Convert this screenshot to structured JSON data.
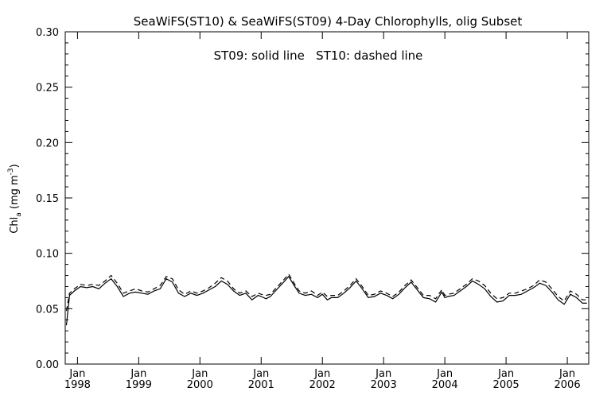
{
  "chart_data": {
    "type": "line",
    "title": "SeaWiFS(ST10) & SeaWiFS(ST09) 4-Day Chlorophylls, olig Subset",
    "legend_text": "ST09: solid line   ST10: dashed line",
    "ylabel": "Chl_a (mg m^-3)",
    "ylabel_parts": {
      "main": "Chl",
      "sub": "a",
      "unit_open": " (mg m",
      "sup": "-3",
      "unit_close": ")"
    },
    "xlabel": "",
    "ylim": [
      0.0,
      0.3
    ],
    "xlim": [
      1997.8,
      2006.35
    ],
    "yticks": [
      0.0,
      0.05,
      0.1,
      0.15,
      0.2,
      0.25,
      0.3
    ],
    "ytick_labels": [
      "0.00",
      "0.05",
      "0.10",
      "0.15",
      "0.20",
      "0.25",
      "0.30"
    ],
    "xticks": [
      {
        "x": 1998,
        "month": "Jan",
        "year": "1998"
      },
      {
        "x": 1999,
        "month": "Jan",
        "year": "1999"
      },
      {
        "x": 2000,
        "month": "Jan",
        "year": "2000"
      },
      {
        "x": 2001,
        "month": "Jan",
        "year": "2001"
      },
      {
        "x": 2002,
        "month": "Jan",
        "year": "2002"
      },
      {
        "x": 2003,
        "month": "Jan",
        "year": "2003"
      },
      {
        "x": 2004,
        "month": "Jan",
        "year": "2004"
      },
      {
        "x": 2005,
        "month": "Jan",
        "year": "2005"
      },
      {
        "x": 2006,
        "month": "Jan",
        "year": "2006"
      }
    ],
    "grid": false,
    "series": [
      {
        "name": "ST09",
        "style": "solid",
        "color": "#000000",
        "x": [
          1997.82,
          1997.87,
          1997.95,
          1998.05,
          1998.15,
          1998.25,
          1998.35,
          1998.45,
          1998.55,
          1998.65,
          1998.75,
          1998.85,
          1998.95,
          1999.05,
          1999.15,
          1999.25,
          1999.35,
          1999.45,
          1999.55,
          1999.65,
          1999.75,
          1999.85,
          1999.95,
          2000.05,
          2000.15,
          2000.25,
          2000.35,
          2000.45,
          2000.55,
          2000.65,
          2000.75,
          2000.85,
          2000.95,
          2001.0,
          2001.08,
          2001.15,
          2001.25,
          2001.35,
          2001.45,
          2001.55,
          2001.62,
          2001.72,
          2001.82,
          2001.92,
          2002.0,
          2002.08,
          2002.15,
          2002.25,
          2002.35,
          2002.45,
          2002.55,
          2002.65,
          2002.75,
          2002.85,
          2002.95,
          2003.05,
          2003.15,
          2003.25,
          2003.35,
          2003.45,
          2003.55,
          2003.65,
          2003.75,
          2003.85,
          2003.95,
          2004.0,
          2004.05,
          2004.15,
          2004.25,
          2004.35,
          2004.45,
          2004.55,
          2004.65,
          2004.75,
          2004.85,
          2004.95,
          2005.05,
          2005.15,
          2005.25,
          2005.35,
          2005.45,
          2005.55,
          2005.65,
          2005.75,
          2005.85,
          2005.95,
          2006.05,
          2006.15,
          2006.25,
          2006.32
        ],
        "y": [
          0.035,
          0.062,
          0.066,
          0.07,
          0.069,
          0.07,
          0.068,
          0.073,
          0.077,
          0.07,
          0.061,
          0.064,
          0.065,
          0.064,
          0.063,
          0.066,
          0.068,
          0.077,
          0.074,
          0.064,
          0.061,
          0.064,
          0.062,
          0.064,
          0.067,
          0.07,
          0.075,
          0.072,
          0.066,
          0.062,
          0.064,
          0.058,
          0.062,
          0.061,
          0.059,
          0.061,
          0.067,
          0.073,
          0.079,
          0.07,
          0.064,
          0.062,
          0.063,
          0.06,
          0.063,
          0.058,
          0.06,
          0.06,
          0.064,
          0.069,
          0.075,
          0.068,
          0.06,
          0.061,
          0.064,
          0.062,
          0.059,
          0.063,
          0.069,
          0.074,
          0.067,
          0.06,
          0.059,
          0.056,
          0.065,
          0.06,
          0.061,
          0.062,
          0.066,
          0.07,
          0.075,
          0.072,
          0.068,
          0.061,
          0.056,
          0.057,
          0.062,
          0.062,
          0.063,
          0.066,
          0.069,
          0.073,
          0.071,
          0.065,
          0.058,
          0.054,
          0.063,
          0.06,
          0.055,
          0.055
        ]
      },
      {
        "name": "ST10",
        "style": "dashed",
        "color": "#000000",
        "x": [
          1997.82,
          1997.87,
          1997.95,
          1998.05,
          1998.15,
          1998.25,
          1998.35,
          1998.45,
          1998.55,
          1998.65,
          1998.75,
          1998.85,
          1998.95,
          1999.05,
          1999.15,
          1999.25,
          1999.35,
          1999.45,
          1999.55,
          1999.65,
          1999.75,
          1999.85,
          1999.95,
          2000.05,
          2000.15,
          2000.25,
          2000.35,
          2000.45,
          2000.55,
          2000.65,
          2000.75,
          2000.85,
          2000.95,
          2001.0,
          2001.08,
          2001.15,
          2001.25,
          2001.35,
          2001.45,
          2001.55,
          2001.62,
          2001.72,
          2001.82,
          2001.92,
          2002.0,
          2002.08,
          2002.15,
          2002.25,
          2002.35,
          2002.45,
          2002.55,
          2002.65,
          2002.75,
          2002.85,
          2002.95,
          2003.05,
          2003.15,
          2003.25,
          2003.35,
          2003.45,
          2003.55,
          2003.65,
          2003.75,
          2003.85,
          2003.95,
          2004.0,
          2004.05,
          2004.15,
          2004.25,
          2004.35,
          2004.45,
          2004.55,
          2004.65,
          2004.75,
          2004.85,
          2004.95,
          2005.05,
          2005.15,
          2005.25,
          2005.35,
          2005.45,
          2005.55,
          2005.65,
          2005.75,
          2005.85,
          2005.95,
          2006.05,
          2006.15,
          2006.25,
          2006.32
        ],
        "y": [
          0.048,
          0.064,
          0.068,
          0.072,
          0.071,
          0.072,
          0.071,
          0.075,
          0.08,
          0.073,
          0.064,
          0.066,
          0.068,
          0.066,
          0.065,
          0.068,
          0.071,
          0.079,
          0.077,
          0.067,
          0.063,
          0.066,
          0.064,
          0.066,
          0.069,
          0.073,
          0.078,
          0.075,
          0.068,
          0.064,
          0.066,
          0.061,
          0.064,
          0.063,
          0.062,
          0.063,
          0.069,
          0.075,
          0.081,
          0.072,
          0.066,
          0.064,
          0.066,
          0.062,
          0.065,
          0.061,
          0.062,
          0.062,
          0.066,
          0.071,
          0.077,
          0.07,
          0.062,
          0.063,
          0.066,
          0.064,
          0.061,
          0.065,
          0.071,
          0.076,
          0.069,
          0.062,
          0.062,
          0.059,
          0.067,
          0.062,
          0.063,
          0.064,
          0.068,
          0.072,
          0.077,
          0.075,
          0.071,
          0.064,
          0.059,
          0.06,
          0.064,
          0.064,
          0.066,
          0.068,
          0.071,
          0.076,
          0.074,
          0.068,
          0.061,
          0.057,
          0.066,
          0.063,
          0.058,
          0.058
        ]
      }
    ]
  }
}
